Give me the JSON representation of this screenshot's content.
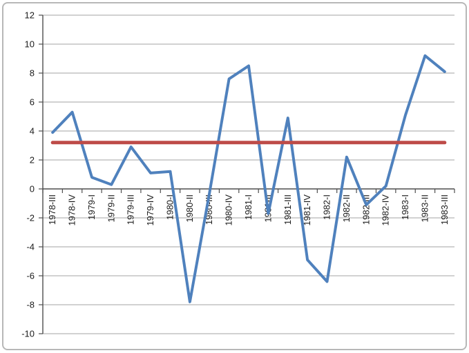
{
  "chart_data": {
    "type": "line",
    "title": "",
    "xlabel": "",
    "ylabel": "",
    "categories": [
      "1978-III",
      "1978-IV",
      "1979-I",
      "1979-II",
      "1979-III",
      "1979-IV",
      "1980-I",
      "1980-II",
      "1980-III",
      "1980-IV",
      "1981-I",
      "1981-II",
      "1981-III",
      "1981-IV",
      "1982-I",
      "1982-II",
      "1982-III",
      "1982-IV",
      "1983-I",
      "1983-II",
      "1983-III"
    ],
    "series": [
      {
        "name": "quarterly-growth",
        "color": "#4F81BD",
        "stroke_width": 4,
        "values": [
          3.9,
          5.3,
          0.8,
          0.3,
          2.9,
          1.1,
          1.2,
          -7.8,
          -0.3,
          7.6,
          8.5,
          -1.7,
          4.9,
          -4.9,
          -6.4,
          2.2,
          -1.1,
          0.2,
          5.1,
          9.2,
          8.1
        ]
      },
      {
        "name": "average-reference-line",
        "color": "#BE4B48",
        "stroke_width": 5,
        "constant": 3.2
      }
    ],
    "ylim": [
      -10,
      12
    ],
    "ytick_step": 2,
    "y_tick_labels": [
      "12",
      "10",
      "8",
      "6",
      "4",
      "2",
      "0",
      "-2",
      "-4",
      "-6",
      "-8",
      "-10"
    ],
    "x_label_rotation": -90,
    "grid": true,
    "legend": "none"
  },
  "colors": {
    "background": "#FFFFFF",
    "border": "#B7B7B7",
    "gridline": "#A3A3A3",
    "axis": "#4D4D4D",
    "label": "#1A1A1A",
    "series_blue": "#4F81BD",
    "series_red": "#BE4B48"
  }
}
